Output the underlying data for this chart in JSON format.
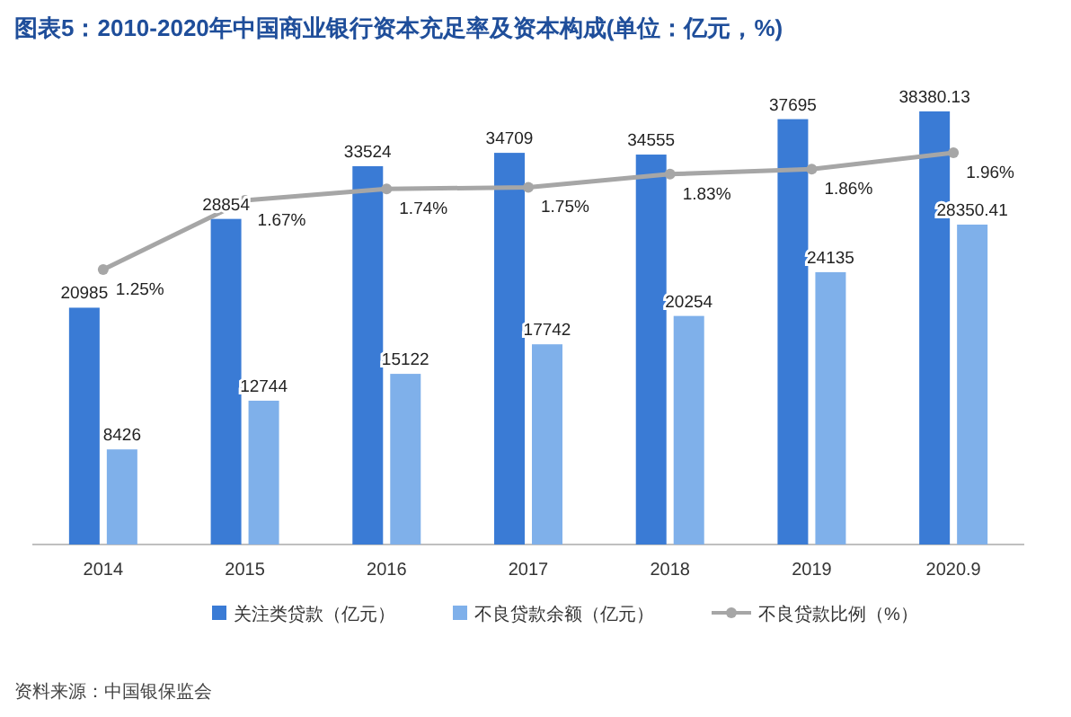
{
  "chart_data": {
    "type": "bar",
    "title": "图表5：2010-2020年中国商业银行资本充足率及资本构成(单位：亿元，%)",
    "categories": [
      "2014",
      "2015",
      "2016",
      "2017",
      "2018",
      "2019",
      "2020.9"
    ],
    "series": [
      {
        "name": "关注类贷款（亿元）",
        "color": "#3a7bd5",
        "values": [
          20985,
          28854,
          33524,
          34709,
          34555,
          37695,
          38380.13
        ]
      },
      {
        "name": "不良贷款余额（亿元）",
        "color": "#7fb0ea",
        "values": [
          8426,
          12744,
          15122,
          17742,
          20254,
          24135,
          28350.41
        ]
      },
      {
        "name": "不良贷款比例（%）",
        "type": "line",
        "axis": "y2",
        "color": "#a6a6a6",
        "values": [
          1.25,
          1.67,
          1.74,
          1.75,
          1.83,
          1.86,
          1.96
        ],
        "value_labels": [
          "1.25%",
          "1.67%",
          "1.74%",
          "1.75%",
          "1.83%",
          "1.86%",
          "1.96%"
        ]
      }
    ],
    "data_labels": true,
    "marker": "circle",
    "legend": "bottom",
    "annotations": [
      "资料来源：中国银保监会"
    ]
  }
}
